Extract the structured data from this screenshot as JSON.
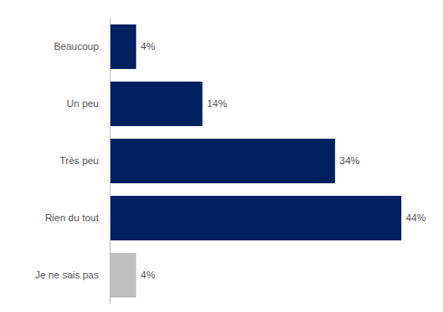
{
  "chart_data": {
    "type": "bar",
    "orientation": "horizontal",
    "categories": [
      "Beaucoup",
      "Un peu",
      "Très peu",
      "Rien du tout",
      "Je ne sais pas"
    ],
    "values": [
      4,
      14,
      34,
      44,
      4
    ],
    "value_labels": [
      "4%",
      "14%",
      "34%",
      "44%",
      "4%"
    ],
    "colors": [
      "#002060",
      "#002060",
      "#002060",
      "#002060",
      "#bfbfbf"
    ],
    "xlim": [
      0,
      44
    ],
    "data_labels": true,
    "tick_labels": "y"
  }
}
